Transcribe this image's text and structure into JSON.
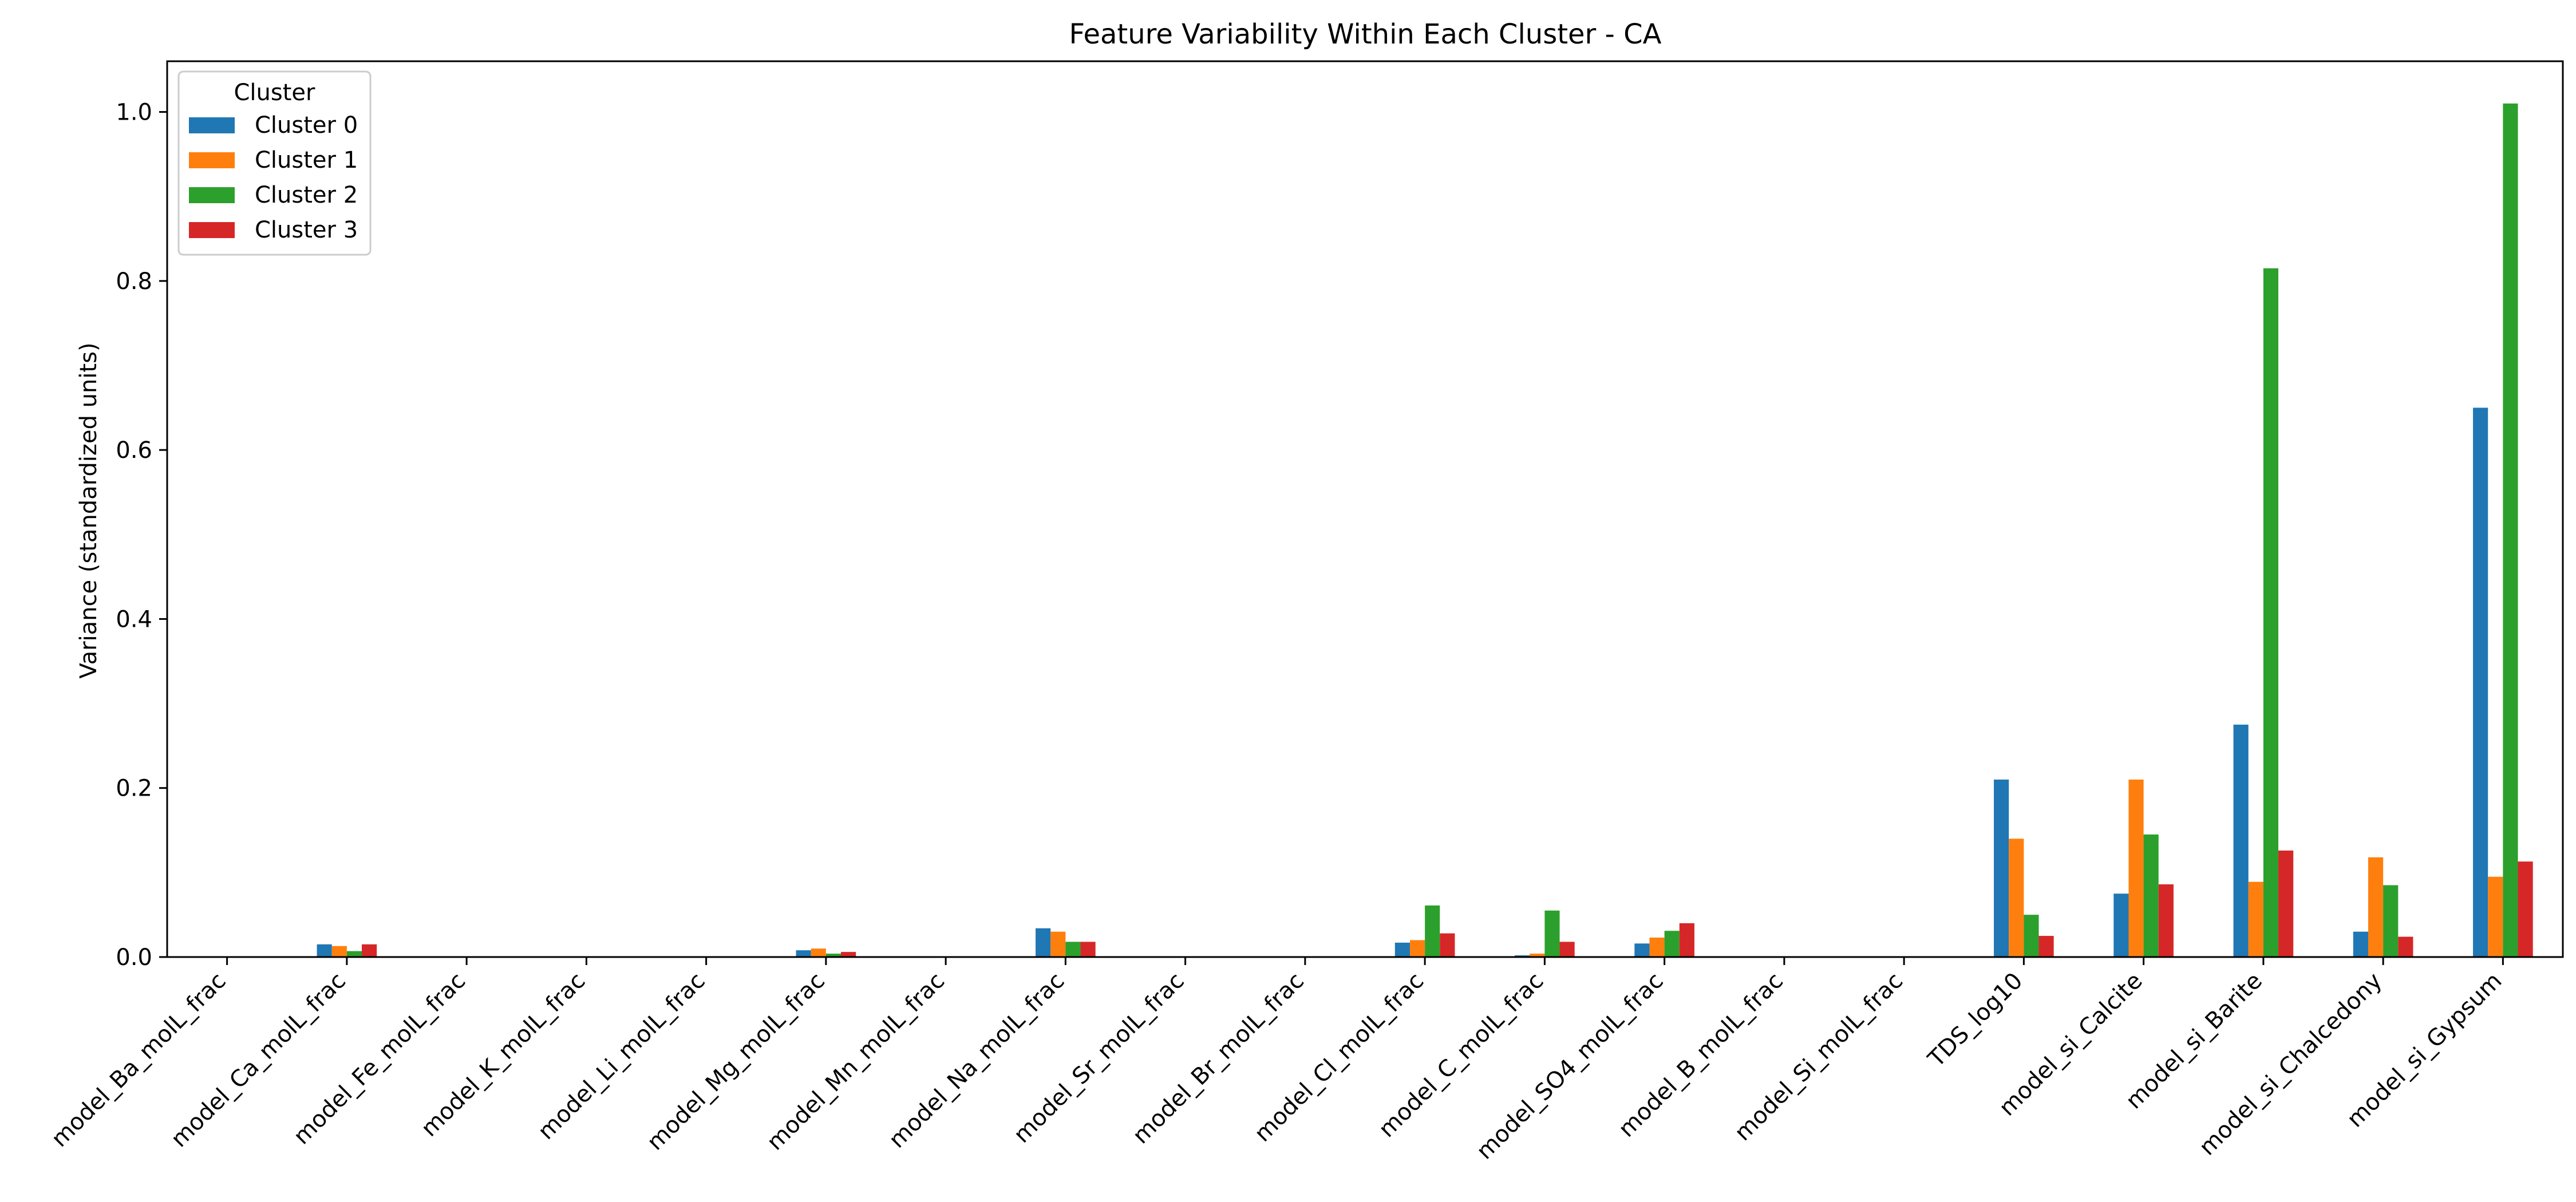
{
  "chart_data": {
    "type": "bar",
    "title": "Feature Variability Within Each Cluster - CA",
    "xlabel": "",
    "ylabel": "Variance (standardized units)",
    "ylim": [
      0,
      1.06
    ],
    "yticks": [
      "0.0",
      "0.2",
      "0.4",
      "0.6",
      "0.8",
      "1.0"
    ],
    "grid": false,
    "legend": {
      "title": "Cluster",
      "placement": "top-left"
    },
    "categories": [
      "model_Ba_molL_frac",
      "model_Ca_molL_frac",
      "model_Fe_molL_frac",
      "model_K_molL_frac",
      "model_Li_molL_frac",
      "model_Mg_molL_frac",
      "model_Mn_molL_frac",
      "model_Na_molL_frac",
      "model_Sr_molL_frac",
      "model_Br_molL_frac",
      "model_Cl_molL_frac",
      "model_C_molL_frac",
      "model_SO4_molL_frac",
      "model_B_molL_frac",
      "model_Si_molL_frac",
      "TDS_log10",
      "model_si_Calcite",
      "model_si_Barite",
      "model_si_Chalcedony",
      "model_si_Gypsum"
    ],
    "series": [
      {
        "name": "Cluster 0",
        "color": "#1f77b4",
        "values": [
          0,
          0.015,
          0,
          0,
          0,
          0.008,
          0,
          0.034,
          0,
          0,
          0.017,
          0.002,
          0.016,
          0,
          0,
          0.21,
          0.075,
          0.275,
          0.03,
          0.65
        ]
      },
      {
        "name": "Cluster 1",
        "color": "#ff7f0e",
        "values": [
          0,
          0.013,
          0,
          0,
          0,
          0.01,
          0,
          0.03,
          0,
          0,
          0.02,
          0.004,
          0.023,
          0,
          0,
          0.14,
          0.21,
          0.089,
          0.118,
          0.095
        ]
      },
      {
        "name": "Cluster 2",
        "color": "#2ca02c",
        "values": [
          0,
          0.007,
          0,
          0,
          0,
          0.004,
          0,
          0.018,
          0,
          0,
          0.061,
          0.055,
          0.031,
          0,
          0,
          0.05,
          0.145,
          0.815,
          0.085,
          1.01
        ]
      },
      {
        "name": "Cluster 3",
        "color": "#d62728",
        "values": [
          0,
          0.015,
          0,
          0,
          0,
          0.006,
          0,
          0.018,
          0,
          0,
          0.028,
          0.018,
          0.04,
          0,
          0,
          0.025,
          0.086,
          0.126,
          0.024,
          0.113
        ]
      }
    ]
  }
}
